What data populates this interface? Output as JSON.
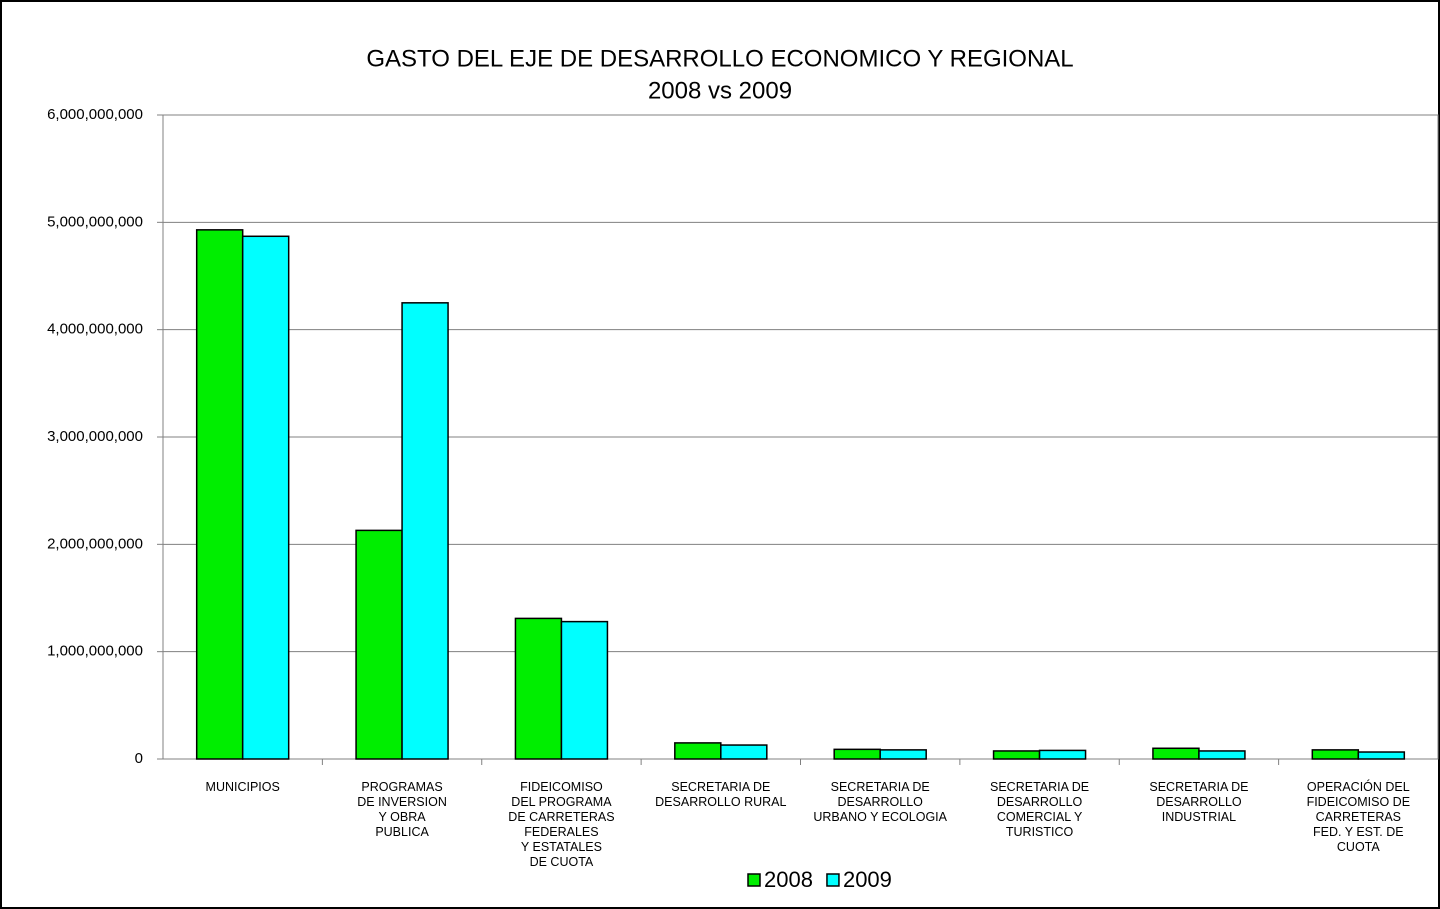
{
  "chart_data": {
    "type": "bar",
    "title": "GASTO DEL EJE DE DESARROLLO ECONOMICO Y REGIONAL",
    "subtitle": "2008 vs 2009",
    "categories": [
      "MUNICIPIOS",
      "PROGRAMAS\nDE INVERSION\nY OBRA\nPUBLICA",
      "FIDEICOMISO\nDEL PROGRAMA\nDE CARRETERAS\nFEDERALES\nY ESTATALES\nDE CUOTA",
      "SECRETARIA DE\nDESARROLLO RURAL",
      "SECRETARIA DE\nDESARROLLO\nURBANO Y ECOLOGIA",
      "SECRETARIA DE\nDESARROLLO\nCOMERCIAL Y\nTURISTICO",
      "SECRETARIA DE\nDESARROLLO\nINDUSTRIAL",
      "OPERACIÓN DEL\nFIDEICOMISO DE\nCARRETERAS\nFED. Y EST. DE\nCUOTA"
    ],
    "series": [
      {
        "name": "2008",
        "color": "#00ee00",
        "values": [
          4930000000,
          2130000000,
          1310000000,
          150000000,
          90000000,
          75000000,
          100000000,
          85000000
        ]
      },
      {
        "name": "2009",
        "color": "#00ffff",
        "values": [
          4870000000,
          4250000000,
          1280000000,
          130000000,
          85000000,
          80000000,
          75000000,
          65000000
        ]
      }
    ],
    "ylim": [
      0,
      6000000000
    ],
    "yticks": [
      0,
      {
        "value": 1000000000,
        "label": "1,000,000,000"
      },
      {
        "value": 2000000000,
        "label": "2,000,000,000"
      },
      {
        "value": 3000000000,
        "label": "3,000,000,000"
      },
      {
        "value": 4000000000,
        "label": "4,000,000,000"
      },
      {
        "value": 5000000000,
        "label": "5,000,000,000"
      },
      {
        "value": 6000000000,
        "label": "6,000,000,000"
      }
    ],
    "grid": true,
    "legend": "bottom"
  }
}
